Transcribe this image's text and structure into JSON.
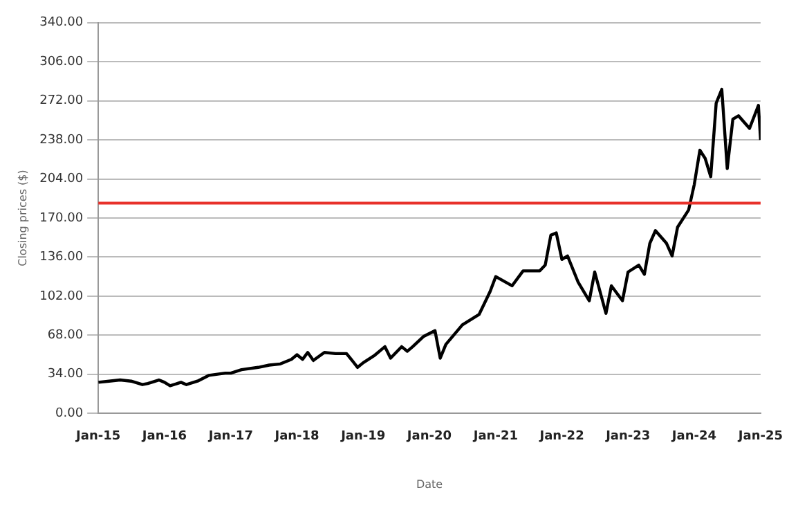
{
  "chart_data": {
    "type": "line",
    "xlabel": "Date",
    "ylabel": "Closing prices ($)",
    "x": [
      "2015-01",
      "2015-03",
      "2015-05",
      "2015-07",
      "2015-09",
      "2015-10",
      "2015-12",
      "2016-01",
      "2016-02",
      "2016-04",
      "2016-05",
      "2016-07",
      "2016-09",
      "2016-12",
      "2017-01",
      "2017-03",
      "2017-06",
      "2017-08",
      "2017-10",
      "2017-12",
      "2018-01",
      "2018-02",
      "2018-03",
      "2018-04",
      "2018-06",
      "2018-08",
      "2018-10",
      "2018-11",
      "2018-12",
      "2019-01",
      "2019-03",
      "2019-05",
      "2019-06",
      "2019-08",
      "2019-09",
      "2019-10",
      "2019-12",
      "2020-02",
      "2020-03",
      "2020-04",
      "2020-07",
      "2020-10",
      "2020-12",
      "2021-01",
      "2021-04",
      "2021-06",
      "2021-09",
      "2021-10",
      "2021-11",
      "2021-12",
      "2022-01",
      "2022-02",
      "2022-04",
      "2022-06",
      "2022-07",
      "2022-09",
      "2022-10",
      "2022-12",
      "2023-01",
      "2023-03",
      "2023-04",
      "2023-05",
      "2023-06",
      "2023-08",
      "2023-09",
      "2023-10",
      "2023-12",
      "2024-01",
      "2024-02",
      "2024-03",
      "2024-04",
      "2024-05",
      "2024-06",
      "2024-07",
      "2024-08",
      "2024-09",
      "2024-11",
      "2024-12-20",
      "2025-01"
    ],
    "series": [
      {
        "color": "#000000",
        "values": [
          27,
          28,
          29,
          28,
          25,
          26,
          29,
          27,
          24,
          27,
          25,
          28,
          33,
          35,
          35,
          38,
          40,
          42,
          43,
          47,
          51,
          47,
          53,
          46,
          53,
          52,
          52,
          46,
          40,
          44,
          50,
          58,
          48,
          58,
          54,
          58,
          67,
          72,
          48,
          60,
          77,
          86,
          106,
          119,
          111,
          124,
          124,
          129,
          155,
          157,
          134,
          137,
          114,
          98,
          123,
          87,
          111,
          98,
          123,
          129,
          121,
          148,
          159,
          148,
          137,
          162,
          177,
          199,
          229,
          222,
          206,
          270,
          282,
          213,
          256,
          259,
          248,
          268,
          238
        ]
      }
    ],
    "xlim": [
      "2015-01",
      "2025-01"
    ],
    "xticks": [
      {
        "value": "2015-01",
        "label": "Jan-15"
      },
      {
        "value": "2016-01",
        "label": "Jan-16"
      },
      {
        "value": "2017-01",
        "label": "Jan-17"
      },
      {
        "value": "2018-01",
        "label": "Jan-18"
      },
      {
        "value": "2019-01",
        "label": "Jan-19"
      },
      {
        "value": "2020-01",
        "label": "Jan-20"
      },
      {
        "value": "2021-01",
        "label": "Jan-21"
      },
      {
        "value": "2022-01",
        "label": "Jan-22"
      },
      {
        "value": "2023-01",
        "label": "Jan-23"
      },
      {
        "value": "2024-01",
        "label": "Jan-24"
      },
      {
        "value": "2025-01",
        "label": "Jan-25"
      }
    ],
    "ylim": [
      0,
      340
    ],
    "yticks": [
      {
        "value": 0,
        "label": "0.00"
      },
      {
        "value": 34,
        "label": "34.00"
      },
      {
        "value": 68,
        "label": "68.00"
      },
      {
        "value": 102,
        "label": "102.00"
      },
      {
        "value": 136,
        "label": "136.00"
      },
      {
        "value": 170,
        "label": "170.00"
      },
      {
        "value": 204,
        "label": "204.00"
      },
      {
        "value": 238,
        "label": "238.00"
      },
      {
        "value": 272,
        "label": "272.00"
      },
      {
        "value": 306,
        "label": "306.00"
      },
      {
        "value": 340,
        "label": "340.00"
      }
    ],
    "ref_lines": [
      {
        "axis": "y",
        "value": 183,
        "color": "#e8312a"
      }
    ],
    "grid": "y",
    "marker": "none",
    "line_style": "solid"
  }
}
